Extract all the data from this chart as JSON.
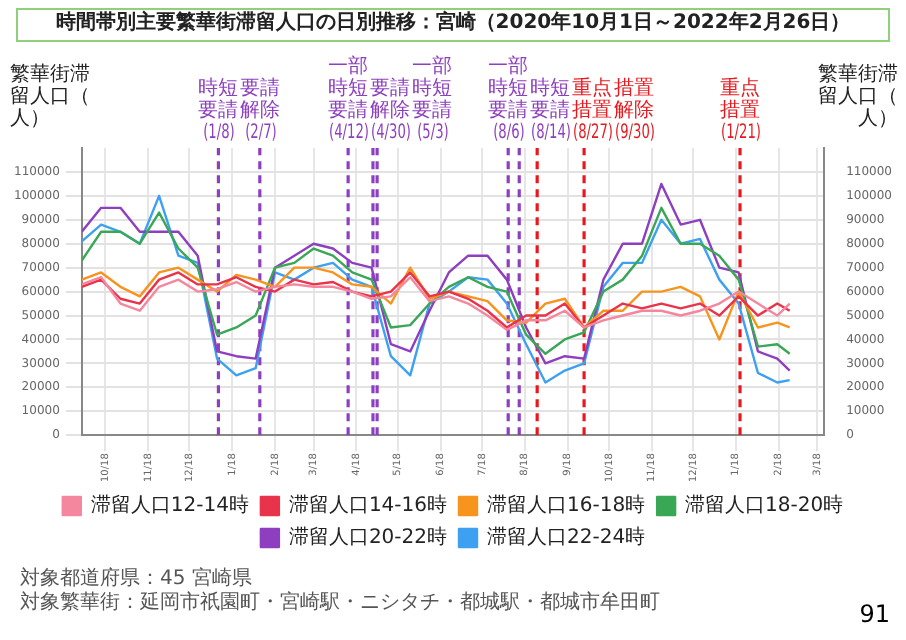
{
  "chart_data": {
    "type": "line",
    "title": "時間帯別主要繁華街滞留人口の日別推移：宮崎（2020年10月1日～2022年2月26日）",
    "ylabel": "繁華街滞留人口（人）",
    "y2label": "繁華街滞留人口（人）",
    "x": [
      "2020-10-01",
      "2020-10-15",
      "2020-10-29",
      "2020-11-12",
      "2020-11-26",
      "2020-12-10",
      "2020-12-24",
      "2021-01-07",
      "2021-01-21",
      "2021-02-04",
      "2021-02-18",
      "2021-03-04",
      "2021-03-18",
      "2021-04-01",
      "2021-04-15",
      "2021-04-29",
      "2021-05-13",
      "2021-05-27",
      "2021-06-10",
      "2021-06-24",
      "2021-07-08",
      "2021-07-22",
      "2021-08-05",
      "2021-08-19",
      "2021-09-02",
      "2021-09-16",
      "2021-09-30",
      "2021-10-14",
      "2021-10-28",
      "2021-11-11",
      "2021-11-25",
      "2021-12-09",
      "2021-12-23",
      "2022-01-06",
      "2022-01-20",
      "2022-02-03",
      "2022-02-17",
      "2022-02-26"
    ],
    "series": [
      {
        "name": "滞留人口12-14時",
        "color": "#f4879e",
        "values": [
          63000,
          66000,
          55000,
          52000,
          62000,
          65000,
          60000,
          61000,
          64000,
          60000,
          62000,
          63000,
          62000,
          62000,
          60000,
          57000,
          58000,
          66000,
          56000,
          58000,
          55000,
          50000,
          44000,
          48000,
          48000,
          52000,
          45000,
          48000,
          50000,
          52000,
          52000,
          50000,
          52000,
          55000,
          60000,
          55000,
          50000,
          55000
        ]
      },
      {
        "name": "滞留人口14-16時",
        "color": "#e8334a",
        "values": [
          62000,
          65000,
          57000,
          55000,
          65000,
          68000,
          63000,
          63000,
          66000,
          62000,
          60000,
          65000,
          63000,
          64000,
          60000,
          58000,
          60000,
          68000,
          58000,
          60000,
          57000,
          52000,
          45000,
          50000,
          50000,
          55000,
          45000,
          50000,
          55000,
          53000,
          55000,
          53000,
          55000,
          50000,
          58000,
          50000,
          55000,
          52000
        ]
      },
      {
        "name": "滞留人口16-18時",
        "color": "#f7941d",
        "values": [
          65000,
          68000,
          62000,
          58000,
          68000,
          70000,
          65000,
          60000,
          67000,
          65000,
          62000,
          70000,
          70000,
          68000,
          63000,
          62000,
          55000,
          70000,
          57000,
          60000,
          58000,
          56000,
          48000,
          47000,
          55000,
          57000,
          45000,
          52000,
          52000,
          60000,
          60000,
          62000,
          58000,
          40000,
          60000,
          45000,
          47000,
          45000
        ]
      },
      {
        "name": "滞留人口18-20時",
        "color": "#3aa757",
        "values": [
          73000,
          85000,
          85000,
          80000,
          93000,
          78000,
          70000,
          42000,
          45000,
          50000,
          70000,
          72000,
          78000,
          75000,
          68000,
          65000,
          45000,
          46000,
          55000,
          62000,
          66000,
          62000,
          60000,
          42000,
          34000,
          40000,
          43000,
          60000,
          65000,
          75000,
          95000,
          80000,
          80000,
          75000,
          65000,
          37000,
          38000,
          34000
        ]
      },
      {
        "name": "滞留人口20-22時",
        "color": "#8e3fbf",
        "values": [
          85000,
          95000,
          95000,
          85000,
          85000,
          85000,
          75000,
          35000,
          33000,
          32000,
          70000,
          75000,
          80000,
          78000,
          72000,
          70000,
          38000,
          35000,
          52000,
          68000,
          75000,
          75000,
          65000,
          45000,
          30000,
          33000,
          32000,
          65000,
          80000,
          80000,
          105000,
          88000,
          90000,
          70000,
          68000,
          35000,
          32000,
          27000
        ]
      },
      {
        "name": "滞留人口22-24時",
        "color": "#3ea0f0",
        "values": [
          81000,
          88000,
          85000,
          80000,
          100000,
          75000,
          72000,
          32000,
          25000,
          28000,
          68000,
          65000,
          70000,
          72000,
          65000,
          62000,
          33000,
          25000,
          55000,
          60000,
          66000,
          65000,
          55000,
          38000,
          22000,
          27000,
          30000,
          62000,
          72000,
          72000,
          90000,
          80000,
          82000,
          65000,
          55000,
          26000,
          22000,
          23000
        ]
      }
    ],
    "xlim": [
      "2020-10-01",
      "2022-03-23"
    ],
    "xticks": [
      {
        "value": "2020-10-18",
        "label": "10/18"
      },
      {
        "value": "2020-11-18",
        "label": "11/18"
      },
      {
        "value": "2020-12-18",
        "label": "12/18"
      },
      {
        "value": "2021-01-18",
        "label": "1/18"
      },
      {
        "value": "2021-02-18",
        "label": "2/18"
      },
      {
        "value": "2021-03-18",
        "label": "3/18"
      },
      {
        "value": "2021-04-18",
        "label": "4/18"
      },
      {
        "value": "2021-05-18",
        "label": "5/18"
      },
      {
        "value": "2021-06-18",
        "label": "6/18"
      },
      {
        "value": "2021-07-18",
        "label": "7/18"
      },
      {
        "value": "2021-08-18",
        "label": "8/18"
      },
      {
        "value": "2021-09-18",
        "label": "9/18"
      },
      {
        "value": "2021-10-18",
        "label": "10/18"
      },
      {
        "value": "2021-11-18",
        "label": "11/18"
      },
      {
        "value": "2021-12-18",
        "label": "12/18"
      },
      {
        "value": "2022-01-18",
        "label": "1/18"
      },
      {
        "value": "2022-02-18",
        "label": "2/18"
      },
      {
        "value": "2022-03-18",
        "label": "3/18"
      }
    ],
    "ylim": [
      0,
      120000
    ],
    "yticks": [
      0,
      10000,
      20000,
      30000,
      40000,
      50000,
      60000,
      70000,
      80000,
      90000,
      100000,
      110000
    ],
    "y2lim": [
      0,
      120000
    ],
    "y2ticks": [
      0,
      10000,
      20000,
      30000,
      40000,
      50000,
      60000,
      70000,
      80000,
      90000,
      100000,
      110000
    ],
    "ref_lines": [
      {
        "axis": "x",
        "value": "2021-01-08",
        "label": "時短要請(1/8)",
        "color": "#8e3fbf",
        "line_style": "dashed"
      },
      {
        "axis": "x",
        "value": "2021-02-07",
        "label": "要請解除(2/7)",
        "color": "#8e3fbf",
        "line_style": "dashed"
      },
      {
        "axis": "x",
        "value": "2021-04-12",
        "label": "一部時短要請(4/12)",
        "color": "#8e3fbf",
        "line_style": "dashed"
      },
      {
        "axis": "x",
        "value": "2021-04-30",
        "label": "要請解除(4/30)",
        "color": "#8e3fbf",
        "line_style": "dashed"
      },
      {
        "axis": "x",
        "value": "2021-05-03",
        "label": "一部時短要請(5/3)",
        "color": "#8e3fbf",
        "line_style": "dashed"
      },
      {
        "axis": "x",
        "value": "2021-08-06",
        "label": "一部時短要請(8/6)",
        "color": "#8e3fbf",
        "line_style": "dashed"
      },
      {
        "axis": "x",
        "value": "2021-08-14",
        "label": "時短要請(8/14)",
        "color": "#8e3fbf",
        "line_style": "dashed"
      },
      {
        "axis": "x",
        "value": "2021-08-27",
        "label": "重点措置(8/27)",
        "color": "#e8191e",
        "line_style": "dashed"
      },
      {
        "axis": "x",
        "value": "2021-09-30",
        "label": "措置解除(9/30)",
        "color": "#e8191e",
        "line_style": "dashed"
      },
      {
        "axis": "x",
        "value": "2022-01-21",
        "label": "重点措置(1/21)",
        "color": "#e8191e",
        "line_style": "dashed"
      }
    ],
    "grid": true,
    "legend": "bottom",
    "marker": "none",
    "line_style": "solid",
    "annotations": [
      "対象都道府県：45 宮崎県",
      "対象繁華街：延岡市祇園町・宮崎駅・ニシタチ・都城駅・都城市牟田町",
      "91"
    ]
  }
}
